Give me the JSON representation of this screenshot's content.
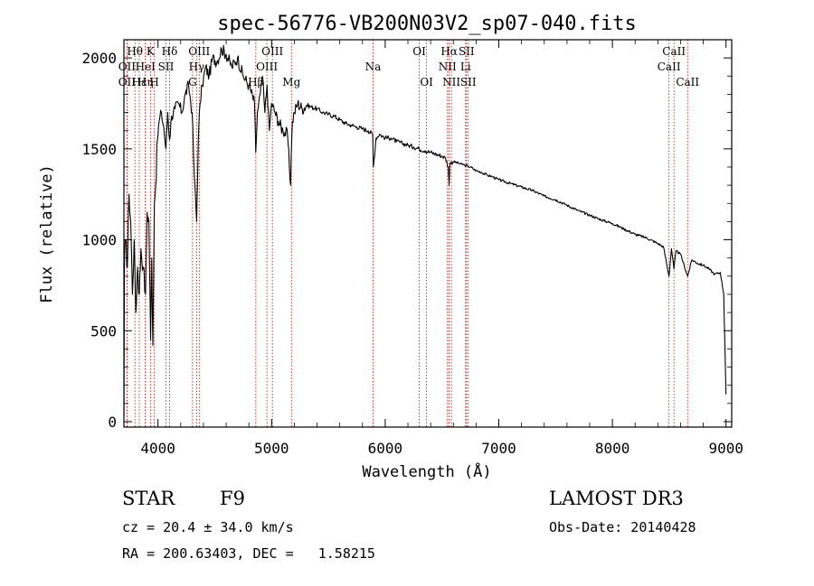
{
  "chart_data": {
    "type": "line",
    "title": "spec-56776-VB200N03V2_sp07-040.fits",
    "xlabel": "Wavelength (Å)",
    "ylabel": "Flux (relative)",
    "xlim": [
      3700,
      9050
    ],
    "ylim": [
      -30,
      2100
    ],
    "xticks": [
      4000,
      5000,
      6000,
      7000,
      8000,
      9000
    ],
    "yticks": [
      0,
      500,
      1000,
      1500,
      2000
    ],
    "series": [
      {
        "name": "spectrum",
        "x": [
          3700,
          3705,
          3715,
          3730,
          3745,
          3760,
          3775,
          3790,
          3805,
          3820,
          3835,
          3850,
          3870,
          3890,
          3905,
          3920,
          3935,
          3945,
          3955,
          3968,
          3980,
          3995,
          4010,
          4030,
          4050,
          4070,
          4085,
          4102,
          4120,
          4150,
          4180,
          4210,
          4240,
          4270,
          4300,
          4320,
          4340,
          4355,
          4370,
          4390,
          4420,
          4450,
          4480,
          4520,
          4560,
          4600,
          4650,
          4700,
          4750,
          4800,
          4850,
          4861,
          4875,
          4900,
          4920,
          4940,
          4960,
          4980,
          5000,
          5030,
          5060,
          5100,
          5140,
          5167,
          5172,
          5183,
          5200,
          5230,
          5270,
          5310,
          5350,
          5400,
          5450,
          5500,
          5550,
          5600,
          5650,
          5700,
          5750,
          5800,
          5850,
          5890,
          5896,
          5920,
          5950,
          6000,
          6050,
          6100,
          6150,
          6200,
          6250,
          6300,
          6350,
          6400,
          6450,
          6500,
          6530,
          6555,
          6563,
          6570,
          6600,
          6650,
          6700,
          6750,
          6800,
          6850,
          6900,
          6950,
          7000,
          7100,
          7200,
          7300,
          7400,
          7500,
          7600,
          7700,
          7800,
          7900,
          8000,
          8100,
          8200,
          8300,
          8400,
          8450,
          8498,
          8520,
          8542,
          8560,
          8600,
          8662,
          8700,
          8750,
          8800,
          8850,
          8900,
          8950,
          8980,
          8990,
          9000
        ],
        "y": [
          30,
          900,
          1000,
          850,
          1250,
          1100,
          700,
          1000,
          600,
          850,
          700,
          950,
          850,
          700,
          1150,
          1100,
          450,
          900,
          420,
          1200,
          1300,
          1550,
          1650,
          1700,
          1620,
          1500,
          1700,
          1550,
          1680,
          1720,
          1750,
          1700,
          1800,
          1850,
          1700,
          1350,
          1100,
          1550,
          1750,
          1850,
          1950,
          1900,
          2000,
          1980,
          2050,
          2020,
          1950,
          2000,
          1900,
          1850,
          1750,
          1480,
          1700,
          1800,
          1900,
          1700,
          1850,
          1600,
          1750,
          1700,
          1650,
          1600,
          1580,
          1300,
          1450,
          1650,
          1700,
          1750,
          1720,
          1740,
          1730,
          1720,
          1700,
          1690,
          1680,
          1660,
          1640,
          1630,
          1620,
          1610,
          1600,
          1580,
          1400,
          1560,
          1580,
          1560,
          1560,
          1540,
          1530,
          1520,
          1510,
          1500,
          1490,
          1480,
          1470,
          1460,
          1450,
          1400,
          1300,
          1420,
          1430,
          1420,
          1410,
          1400,
          1380,
          1370,
          1355,
          1345,
          1330,
          1310,
          1290,
          1270,
          1240,
          1220,
          1190,
          1160,
          1135,
          1110,
          1090,
          1060,
          1030,
          1010,
          980,
          960,
          800,
          950,
          840,
          940,
          920,
          800,
          890,
          870,
          860,
          840,
          810,
          820,
          700,
          420,
          150
        ]
      }
    ],
    "lines": [
      {
        "name": "Hθ",
        "wl": 3797,
        "row": 1
      },
      {
        "name": "OII",
        "wl": 3727,
        "row": 2
      },
      {
        "name": "OII",
        "wl": 3727,
        "row": 3
      },
      {
        "name": "Hε",
        "wl": 3835,
        "row": 3
      },
      {
        "name": "K",
        "wl": 3934,
        "row": 1
      },
      {
        "name": "HeI",
        "wl": 3889,
        "row": 2
      },
      {
        "name": "Hη",
        "wl": 3889,
        "row": 3
      },
      {
        "name": "H",
        "wl": 3968,
        "row": 3
      },
      {
        "name": "Hδ",
        "wl": 4102,
        "row": 1
      },
      {
        "name": "SII",
        "wl": 4070,
        "row": 2
      },
      {
        "name": "OIII",
        "wl": 4363,
        "row": 1
      },
      {
        "name": "Hγ",
        "wl": 4340,
        "row": 2
      },
      {
        "name": "G",
        "wl": 4304,
        "row": 3
      },
      {
        "name": "OIII",
        "wl": 5007,
        "row": 1
      },
      {
        "name": "OIII",
        "wl": 4959,
        "row": 2
      },
      {
        "name": "Hβ",
        "wl": 4861,
        "row": 3
      },
      {
        "name": "Mg",
        "wl": 5175,
        "row": 3
      },
      {
        "name": "Na",
        "wl": 5893,
        "row": 2
      },
      {
        "name": "OI",
        "wl": 6300,
        "row": 1
      },
      {
        "name": "OI",
        "wl": 6364,
        "row": 3
      },
      {
        "name": "Hα",
        "wl": 6563,
        "row": 1
      },
      {
        "name": "SII",
        "wl": 6716,
        "row": 1
      },
      {
        "name": "NII",
        "wl": 6548,
        "row": 2
      },
      {
        "name": "Li",
        "wl": 6708,
        "row": 2
      },
      {
        "name": "NII",
        "wl": 6583,
        "row": 3
      },
      {
        "name": "SII",
        "wl": 6731,
        "row": 3
      },
      {
        "name": "CaII",
        "wl": 8542,
        "row": 1
      },
      {
        "name": "CaII",
        "wl": 8498,
        "row": 2
      },
      {
        "name": "CaII",
        "wl": 8662,
        "row": 3
      }
    ],
    "line_color": "#cc0000",
    "spectrum_color": "#000000"
  },
  "info": {
    "object_class": "STAR",
    "subclass": "F9",
    "survey": "LAMOST DR3",
    "cz": "cz = 20.4 ± 34.0 km/s",
    "obs_date": "Obs-Date: 20140428",
    "coords": "RA = 200.63403, DEC =   1.58215"
  }
}
